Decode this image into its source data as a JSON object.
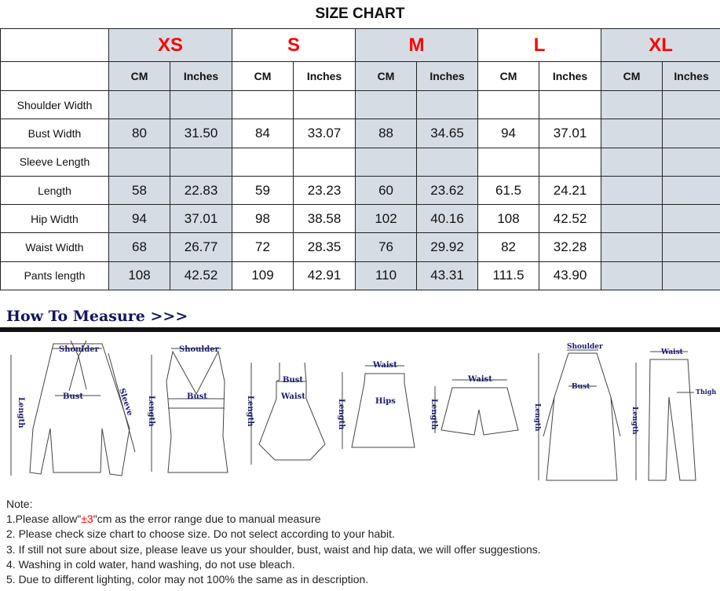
{
  "title": "SIZE CHART",
  "table": {
    "sizes": [
      "XS",
      "S",
      "M",
      "L",
      "XL"
    ],
    "shaded_sizes": [
      "XS",
      "M",
      "XL"
    ],
    "shade_color": "#d6dce4",
    "size_color": "#ff0000",
    "units": [
      "CM",
      "Inches"
    ],
    "rows": [
      {
        "label": "Shoulder Width",
        "values": [
          "",
          "",
          "",
          "",
          "",
          "",
          "",
          "",
          "",
          ""
        ]
      },
      {
        "label": "Bust Width",
        "values": [
          "80",
          "31.50",
          "84",
          "33.07",
          "88",
          "34.65",
          "94",
          "37.01",
          "",
          ""
        ]
      },
      {
        "label": "Sleeve Length",
        "values": [
          "",
          "",
          "",
          "",
          "",
          "",
          "",
          "",
          "",
          ""
        ]
      },
      {
        "label": "Length",
        "values": [
          "58",
          "22.83",
          "59",
          "23.23",
          "60",
          "23.62",
          "61.5",
          "24.21",
          "",
          ""
        ]
      },
      {
        "label": "Hip Width",
        "values": [
          "94",
          "37.01",
          "98",
          "38.58",
          "102",
          "40.16",
          "108",
          "42.52",
          "",
          ""
        ]
      },
      {
        "label": "Waist Width",
        "values": [
          "68",
          "26.77",
          "72",
          "28.35",
          "76",
          "29.92",
          "82",
          "32.28",
          "",
          ""
        ]
      },
      {
        "label": "Pants length",
        "values": [
          "108",
          "42.52",
          "109",
          "42.91",
          "110",
          "43.31",
          "111.5",
          "43.90",
          "",
          ""
        ]
      }
    ]
  },
  "how_to_measure": {
    "heading": "How To Measure >>>",
    "figures": {
      "shirt": {
        "shoulder": "Shoulder",
        "length": "Length",
        "bust": "Bust",
        "sleeve": "Sleeve"
      },
      "tank": {
        "shoulder": "Shoulder",
        "length": "Length",
        "bust": "Bust"
      },
      "dress": {
        "length": "Length",
        "bust": "Bust",
        "waist": "Waist"
      },
      "skirt": {
        "length": "Length",
        "waist": "Waist",
        "hips": "Hips"
      },
      "shorts": {
        "length": "Length",
        "waist": "Waist"
      },
      "coat": {
        "shoulder": "Shoulder",
        "length": "Length",
        "bust": "Bust"
      },
      "pants": {
        "waist": "Waist",
        "length": "Length",
        "thigh": "Thigh"
      }
    }
  },
  "notes": {
    "heading": "Note:",
    "line1_a": "1.Please allow\"",
    "line1_red": "±3",
    "line1_b": "\"cm as the error range due to manual measure",
    "lines": [
      "2. Please check size chart to choose size. Do not select according to your habit.",
      "3. If still not sure about size, please leave us your shoulder, bust, waist and hip data, we will offer suggestions.",
      "4. Washing in cold water, hand washing, do not use bleach.",
      "5. Due to different lighting, color may not 100% the same as in description."
    ]
  }
}
